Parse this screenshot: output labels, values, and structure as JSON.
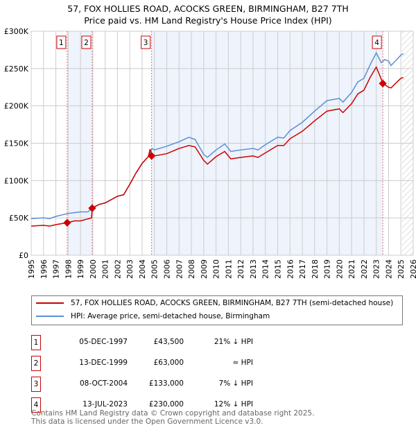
{
  "chart_data": {
    "type": "line",
    "title": "57, FOX HOLLIES ROAD, ACOCKS GREEN, BIRMINGHAM, B27 7TH",
    "subtitle": "Price paid vs. HM Land Registry's House Price Index (HPI)",
    "xlim": [
      1995,
      2026
    ],
    "ylim": [
      0,
      300000
    ],
    "x_ticks": [
      "1995",
      "1996",
      "1997",
      "1998",
      "1999",
      "2000",
      "2001",
      "2002",
      "2003",
      "2004",
      "2005",
      "2006",
      "2007",
      "2008",
      "2009",
      "2010",
      "2011",
      "2012",
      "2013",
      "2014",
      "2015",
      "2016",
      "2017",
      "2018",
      "2019",
      "2020",
      "2021",
      "2022",
      "2023",
      "2024",
      "2025",
      "2026"
    ],
    "y_ticks": [
      {
        "v": 0,
        "label": "£0"
      },
      {
        "v": 50000,
        "label": "£50K"
      },
      {
        "v": 100000,
        "label": "£100K"
      },
      {
        "v": 150000,
        "label": "£150K"
      },
      {
        "v": 200000,
        "label": "£200K"
      },
      {
        "v": 250000,
        "label": "£250K"
      },
      {
        "v": 300000,
        "label": "£300K"
      }
    ],
    "grid": true,
    "series": [
      {
        "name": "57, FOX HOLLIES ROAD, ACOCKS GREEN, BIRMINGHAM, B27 7TH (semi-detached house)",
        "color": "#cc0000",
        "points": [
          [
            1995,
            39000
          ],
          [
            1996,
            40000
          ],
          [
            1996.5,
            39000
          ],
          [
            1997,
            41000
          ],
          [
            1997.92,
            43500
          ],
          [
            1998.5,
            46000
          ],
          [
            1999,
            46000
          ],
          [
            1999.9,
            50000
          ],
          [
            1999.95,
            63000
          ],
          [
            2000.5,
            68000
          ],
          [
            2001,
            70000
          ],
          [
            2002,
            79000
          ],
          [
            2002.5,
            81000
          ],
          [
            2003,
            95000
          ],
          [
            2003.5,
            110000
          ],
          [
            2004,
            123000
          ],
          [
            2004.5,
            132000
          ],
          [
            2004.65,
            142000
          ],
          [
            2004.77,
            133000
          ],
          [
            2005,
            133000
          ],
          [
            2006,
            136000
          ],
          [
            2007,
            143000
          ],
          [
            2007.8,
            147000
          ],
          [
            2008.3,
            145000
          ],
          [
            2009,
            127000
          ],
          [
            2009.3,
            122000
          ],
          [
            2010,
            132000
          ],
          [
            2010.7,
            139000
          ],
          [
            2011.2,
            129000
          ],
          [
            2012,
            131000
          ],
          [
            2013,
            133000
          ],
          [
            2013.4,
            131000
          ],
          [
            2014,
            137000
          ],
          [
            2015,
            147000
          ],
          [
            2015.5,
            147000
          ],
          [
            2016,
            156000
          ],
          [
            2017,
            166000
          ],
          [
            2018,
            180000
          ],
          [
            2019,
            193000
          ],
          [
            2020,
            196000
          ],
          [
            2020.3,
            191000
          ],
          [
            2021,
            203000
          ],
          [
            2021.5,
            216000
          ],
          [
            2022,
            221000
          ],
          [
            2022.5,
            238000
          ],
          [
            2023,
            252000
          ],
          [
            2023.4,
            236000
          ],
          [
            2023.53,
            230000
          ],
          [
            2024,
            225000
          ],
          [
            2024.2,
            224000
          ],
          [
            2025,
            237000
          ],
          [
            2025.2,
            238000
          ]
        ]
      },
      {
        "name": "HPI: Average price, semi-detached house, Birmingham",
        "color": "#5b8fd4",
        "points": [
          [
            1995,
            49000
          ],
          [
            1996,
            50000
          ],
          [
            1996.5,
            49000
          ],
          [
            1997,
            52000
          ],
          [
            1998,
            56000
          ],
          [
            1999,
            58000
          ],
          [
            1999.6,
            58000
          ],
          [
            2000,
            64000
          ],
          [
            2000.5,
            68000
          ],
          [
            2001,
            70000
          ],
          [
            2002,
            79000
          ],
          [
            2002.5,
            81000
          ],
          [
            2003,
            95000
          ],
          [
            2003.5,
            110000
          ],
          [
            2004,
            123000
          ],
          [
            2004.5,
            132000
          ],
          [
            2004.8,
            143000
          ],
          [
            2005,
            141000
          ],
          [
            2006,
            146000
          ],
          [
            2007,
            152000
          ],
          [
            2007.8,
            158000
          ],
          [
            2008.3,
            155000
          ],
          [
            2009,
            135000
          ],
          [
            2009.3,
            131000
          ],
          [
            2010,
            141000
          ],
          [
            2010.7,
            149000
          ],
          [
            2011.2,
            139000
          ],
          [
            2012,
            141000
          ],
          [
            2013,
            143000
          ],
          [
            2013.4,
            141000
          ],
          [
            2014,
            148000
          ],
          [
            2015,
            158000
          ],
          [
            2015.5,
            157000
          ],
          [
            2016,
            167000
          ],
          [
            2017,
            178000
          ],
          [
            2018,
            193000
          ],
          [
            2019,
            207000
          ],
          [
            2020,
            210000
          ],
          [
            2020.3,
            205000
          ],
          [
            2021,
            218000
          ],
          [
            2021.5,
            232000
          ],
          [
            2022,
            237000
          ],
          [
            2022.5,
            255000
          ],
          [
            2023,
            271000
          ],
          [
            2023.4,
            258000
          ],
          [
            2023.7,
            262000
          ],
          [
            2024,
            260000
          ],
          [
            2024.2,
            254000
          ],
          [
            2025,
            268000
          ],
          [
            2025.2,
            270000
          ]
        ]
      }
    ],
    "sales": [
      {
        "id": "1",
        "x": 1997.92,
        "price": 43500,
        "date": "05-DEC-1997",
        "price_label": "£43,500",
        "vs_hpi": "21% ↓ HPI"
      },
      {
        "id": "2",
        "x": 1999.95,
        "price": 63000,
        "date": "13-DEC-1999",
        "price_label": "£63,000",
        "vs_hpi": "≈ HPI"
      },
      {
        "id": "3",
        "x": 2004.77,
        "price": 133000,
        "date": "08-OCT-2004",
        "price_label": "£133,000",
        "vs_hpi": "7% ↓ HPI"
      },
      {
        "id": "4",
        "x": 2023.53,
        "price": 230000,
        "date": "13-JUL-2023",
        "price_label": "£230,000",
        "vs_hpi": "12% ↓ HPI"
      }
    ],
    "shaded_ranges": [
      [
        1997.92,
        1999.95
      ],
      [
        2004.77,
        2023.53
      ]
    ],
    "forecast_hatch_from": 2025.1
  },
  "footer": [
    "Contains HM Land Registry data © Crown copyright and database right 2025.",
    "This data is licensed under the Open Government Licence v3.0."
  ]
}
